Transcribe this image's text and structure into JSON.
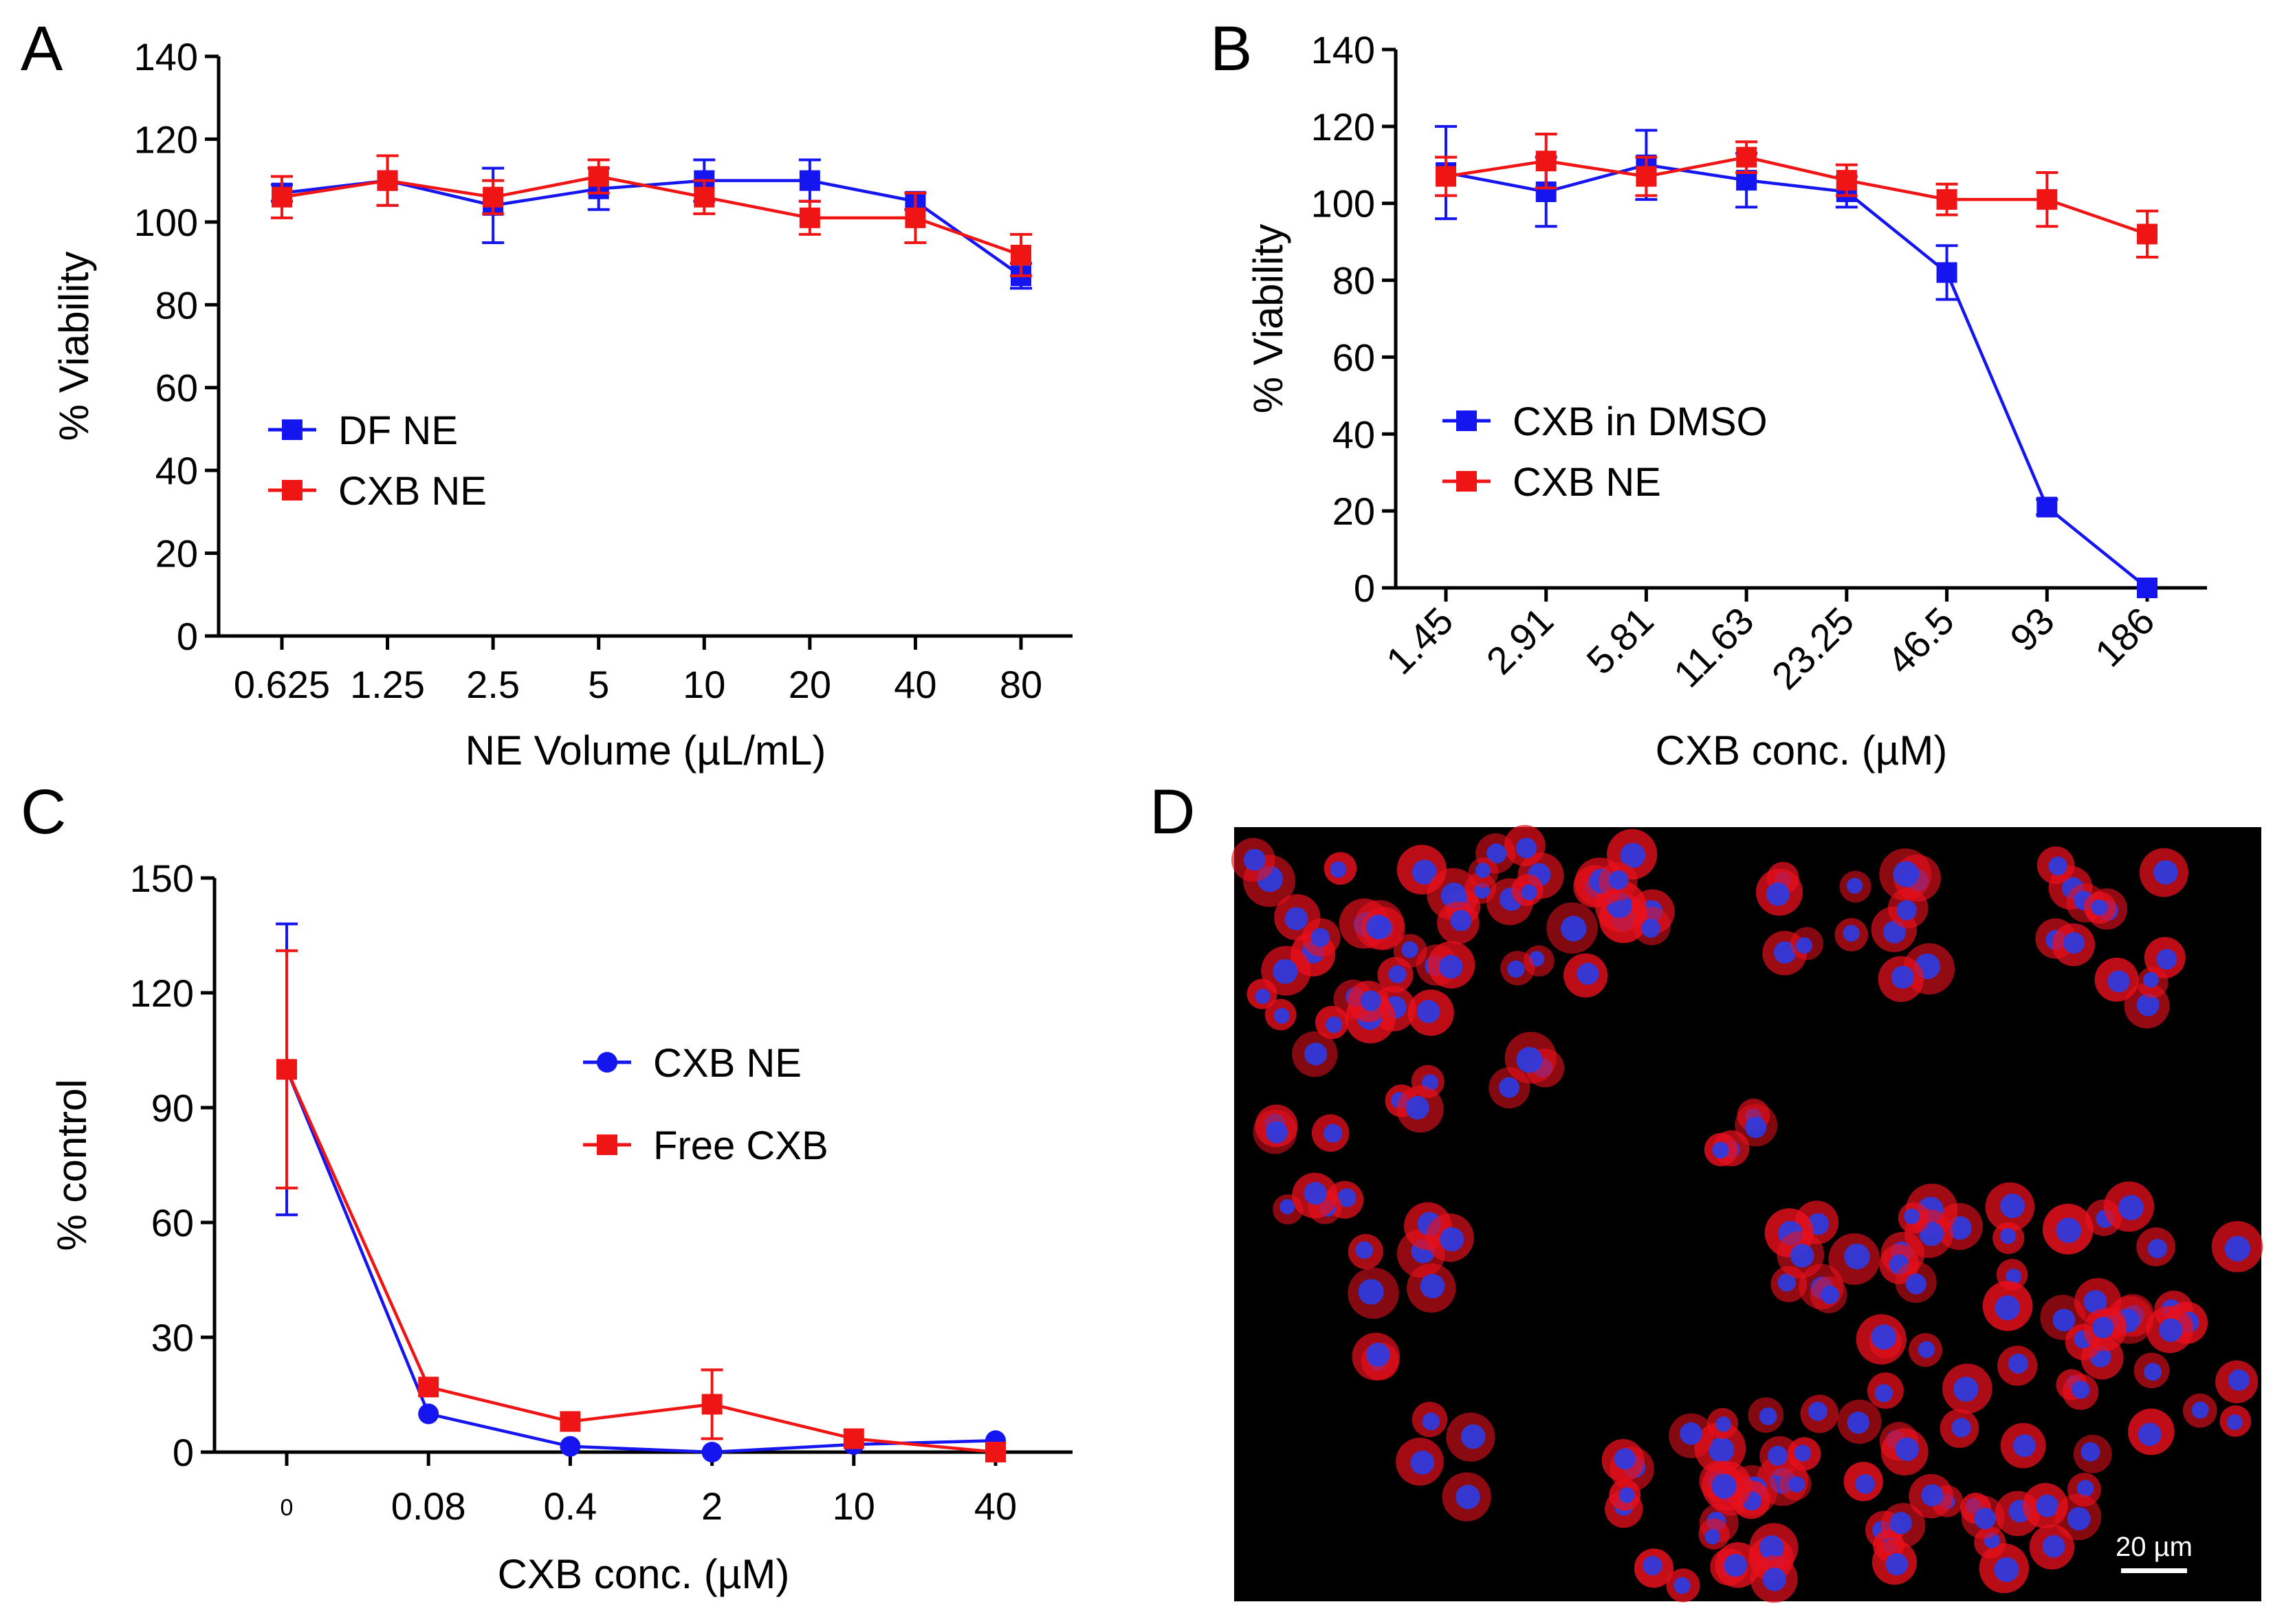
{
  "colors": {
    "blue": "#1515f0",
    "red": "#f01515",
    "axis": "#000000",
    "micrograph_bg": "#000000",
    "cell_red": "#e8101c",
    "nucleus_blue": "#2a3ce6"
  },
  "chart_data": [
    {
      "panel": "A",
      "type": "line",
      "xlabel": "NE Volume (µL/mL)",
      "ylabel": "% Viability",
      "categories": [
        "0.625",
        "1.25",
        "2.5",
        "5",
        "10",
        "20",
        "40",
        "80"
      ],
      "ylim": [
        0,
        140
      ],
      "yticks": [
        "0",
        "20",
        "40",
        "60",
        "80",
        "100",
        "120",
        "140"
      ],
      "x_tick_rotation": 0,
      "legend_position": "middle-left",
      "series": [
        {
          "name": "DF NE",
          "marker": "square",
          "color": "#1515f0",
          "values": [
            107,
            110,
            104,
            108,
            110,
            110,
            105,
            87
          ],
          "errors": [
            2,
            6,
            9,
            5,
            5,
            5,
            2,
            3
          ]
        },
        {
          "name": "CXB NE",
          "marker": "square",
          "color": "#f01515",
          "values": [
            106,
            110,
            106,
            111,
            106,
            101,
            101,
            92
          ],
          "errors": [
            5,
            6,
            4,
            4,
            4,
            4,
            6,
            5
          ]
        }
      ]
    },
    {
      "panel": "B",
      "type": "line",
      "xlabel": "CXB conc. (µM)",
      "ylabel": "% Viability",
      "categories": [
        "1.45",
        "2.91",
        "5.81",
        "11.63",
        "23.25",
        "46.5",
        "93",
        "186"
      ],
      "ylim": [
        0,
        140
      ],
      "yticks": [
        "0",
        "20",
        "40",
        "60",
        "80",
        "100",
        "120",
        "140"
      ],
      "x_tick_rotation": -45,
      "legend_position": "middle-left",
      "series": [
        {
          "name": "CXB in DMSO",
          "marker": "square",
          "color": "#1515f0",
          "values": [
            108,
            103,
            110,
            106,
            103,
            82,
            21,
            0
          ],
          "errors": [
            12,
            9,
            9,
            7,
            4,
            7,
            2,
            0
          ]
        },
        {
          "name": "CXB NE",
          "marker": "square",
          "color": "#f01515",
          "values": [
            107,
            111,
            107,
            112,
            106,
            101,
            101,
            92
          ],
          "errors": [
            5,
            7,
            5,
            4,
            4,
            4,
            7,
            6
          ]
        }
      ]
    },
    {
      "panel": "C",
      "type": "line",
      "xlabel": "CXB conc. (µM)",
      "ylabel": "% control",
      "categories": [
        "0",
        "0.08",
        "0.4",
        "2",
        "10",
        "40"
      ],
      "ylim": [
        0,
        150
      ],
      "yticks": [
        "0",
        "30",
        "60",
        "90",
        "120",
        "150"
      ],
      "x_tick_rotation": 0,
      "legend_position": "center-right",
      "series": [
        {
          "name": "CXB NE",
          "marker": "circle",
          "color": "#1515f0",
          "values": [
            100,
            10,
            1.5,
            0,
            2,
            3
          ],
          "errors": [
            38,
            0,
            0,
            0,
            0,
            0
          ]
        },
        {
          "name": "Free CXB",
          "marker": "square",
          "color": "#f01515",
          "values": [
            100,
            17,
            8,
            12.5,
            3.5,
            0
          ],
          "errors": [
            31,
            0,
            0,
            9,
            0,
            0
          ]
        }
      ]
    }
  ],
  "micrograph": {
    "panel": "D",
    "scale_bar_label": "20 µm"
  }
}
